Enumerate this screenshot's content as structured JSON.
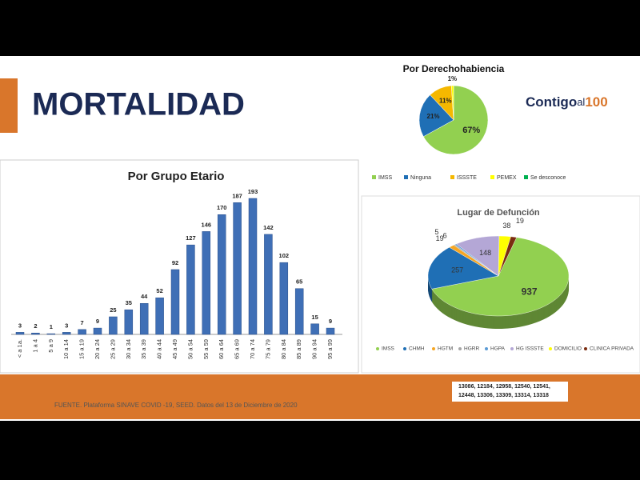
{
  "slide": {
    "title": "MORTALIDAD",
    "logo": [
      "Contigo",
      "al",
      "100"
    ],
    "source": "FUENTE. Plataforma SINAVE COVID -19, SEED. Datos del 13 de Diciembre de 2020",
    "codes": [
      "13086, 12184, 12958, 12540, 12541,",
      "12448, 13306, 13309, 13314, 13318"
    ]
  },
  "chart_data": [
    {
      "type": "bar",
      "title": "Por Grupo Etario",
      "color": "#3f6fb6",
      "categories": [
        "< a 1a.",
        "1 a 4",
        "5 a 9",
        "10 a 14",
        "15 a 19",
        "20 a 24",
        "25 a 29",
        "30 a 34",
        "35 a 39",
        "40 a 44",
        "45 a 49",
        "50 a 54",
        "55 a 59",
        "60 a 64",
        "65 a 69",
        "70 a 74",
        "75 a 79",
        "80 a 84",
        "85 a 89",
        "90 a 94",
        "95 a 99"
      ],
      "values": [
        3,
        2,
        1,
        3,
        7,
        9,
        25,
        35,
        44,
        52,
        92,
        127,
        146,
        170,
        187,
        193,
        142,
        102,
        65,
        15,
        9
      ]
    },
    {
      "type": "pie",
      "title": "Por Derechohabiencia",
      "categories": [
        "IMSS",
        "Ninguna",
        "ISSSTE",
        "PEMEX",
        "Se desconoce"
      ],
      "values": [
        67,
        21,
        11,
        1,
        0
      ],
      "value_labels": [
        "67%",
        "21%",
        "11%",
        "1%",
        null
      ],
      "colors": [
        "#92d050",
        "#1f6fb5",
        "#f5b800",
        "#ffff00",
        "#00b050"
      ]
    },
    {
      "type": "pie3d",
      "title": "Lugar de Defunción",
      "categories": [
        "IMSS",
        "CHMH",
        "HGTM",
        "HGRR",
        "HGPA",
        "HG ISSSTE",
        "DOMICILIO",
        "CLINICA PRIVADA"
      ],
      "values": [
        937,
        257,
        19,
        5,
        6,
        148,
        38,
        19
      ],
      "colors": [
        "#92d050",
        "#1f6fb5",
        "#f5a623",
        "#a6a6a6",
        "#5b9bd5",
        "#b4a7d6",
        "#ffff00",
        "#7b2c10"
      ]
    }
  ]
}
